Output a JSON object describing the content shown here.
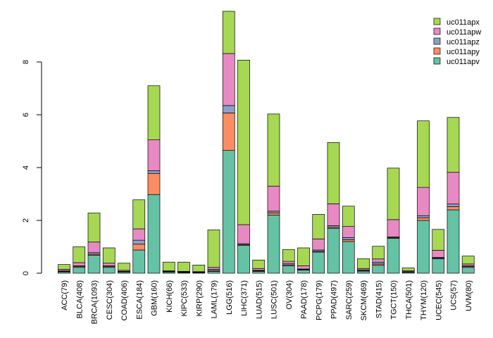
{
  "chart_data": {
    "type": "bar",
    "stacked": true,
    "title": "",
    "xlabel": "",
    "ylabel": "",
    "ylim": [
      0,
      10
    ],
    "y_ticks": [
      0,
      2,
      4,
      6,
      8
    ],
    "y_tick_labels": [
      "0",
      "2",
      "4",
      "6",
      "8"
    ],
    "grid": false,
    "legend_position": "top-right",
    "categories": [
      "ACC(79)",
      "BLCA(408)",
      "BRCA(1093)",
      "CESC(304)",
      "COAD(406)",
      "ESCA(184)",
      "GBM(160)",
      "KICH(66)",
      "KIPC(533)",
      "KIRP(290)",
      "LAML(179)",
      "LGG(516)",
      "LIHC(371)",
      "LUAD(515)",
      "LUSC(501)",
      "OV(304)",
      "PAAD(178)",
      "PCPG(179)",
      "PPAD(497)",
      "SARC(259)",
      "SKCM(469)",
      "STAD(415)",
      "TGCT(150)",
      "THCA(501)",
      "THYM(120)",
      "UCEC(545)",
      "UCS(57)",
      "UVM(80)"
    ],
    "series": [
      {
        "name": "uc011apv",
        "color": "#66c2a5",
        "values": [
          0.05,
          0.22,
          0.68,
          0.22,
          0.05,
          0.88,
          2.98,
          0.05,
          0.03,
          0.02,
          0.07,
          4.65,
          1.05,
          0.07,
          2.2,
          0.28,
          0.12,
          0.8,
          1.7,
          1.2,
          0.08,
          0.3,
          1.32,
          0.04,
          2.0,
          0.55,
          2.4,
          0.22
        ]
      },
      {
        "name": "uc011apy",
        "color": "#fc8d62",
        "values": [
          0.02,
          0.03,
          0.04,
          0.03,
          0.01,
          0.22,
          0.8,
          0.01,
          0.01,
          0.01,
          0.03,
          1.42,
          0.03,
          0.02,
          0.08,
          0.04,
          0.02,
          0.03,
          0.04,
          0.07,
          0.02,
          0.05,
          0.03,
          0.01,
          0.1,
          0.02,
          0.12,
          0.03
        ]
      },
      {
        "name": "uc011apz",
        "color": "#8da0cb",
        "values": [
          0.02,
          0.03,
          0.06,
          0.03,
          0.01,
          0.15,
          0.1,
          0.01,
          0.01,
          0.01,
          0.05,
          0.28,
          0.04,
          0.02,
          0.07,
          0.05,
          0.02,
          0.05,
          0.06,
          0.08,
          0.03,
          0.07,
          0.03,
          0.01,
          0.08,
          0.03,
          0.1,
          0.03
        ]
      },
      {
        "name": "uc011apw",
        "color": "#e78ac3",
        "values": [
          0.06,
          0.12,
          0.4,
          0.1,
          0.04,
          0.43,
          1.17,
          0.02,
          0.02,
          0.02,
          0.07,
          1.97,
          0.72,
          0.07,
          0.95,
          0.08,
          0.12,
          0.42,
          0.83,
          0.42,
          0.05,
          0.12,
          0.65,
          0.03,
          1.07,
          0.27,
          1.2,
          0.07
        ]
      },
      {
        "name": "uc011apx",
        "color": "#a6d854",
        "values": [
          0.18,
          0.6,
          1.1,
          0.58,
          0.27,
          1.1,
          2.05,
          0.33,
          0.35,
          0.25,
          1.42,
          1.6,
          6.23,
          0.32,
          2.73,
          0.45,
          0.68,
          0.93,
          2.32,
          0.77,
          0.37,
          0.48,
          1.95,
          0.11,
          2.52,
          0.79,
          2.08,
          0.3
        ]
      }
    ]
  }
}
